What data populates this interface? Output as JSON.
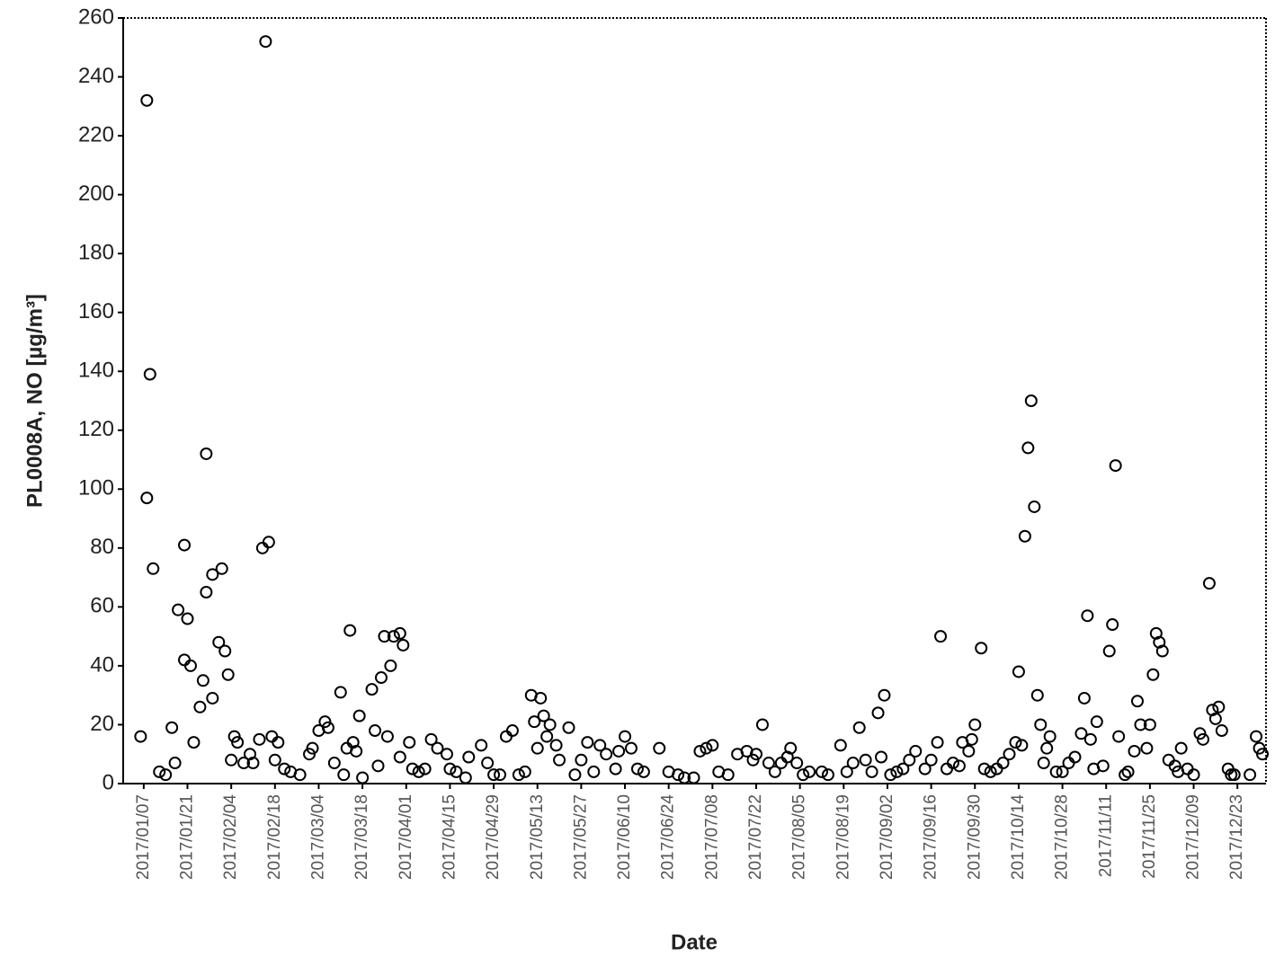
{
  "chart_data": {
    "type": "scatter",
    "xlabel": "Date",
    "ylabel": "PL0008A, NO [µg/m³]",
    "xlim": [
      "2017/01/01",
      "2017/12/31"
    ],
    "ylim": [
      0,
      260
    ],
    "yticks": [
      0,
      20,
      40,
      60,
      80,
      100,
      120,
      140,
      160,
      180,
      200,
      220,
      240,
      260
    ],
    "xticks": [
      "2017/01/07",
      "2017/01/21",
      "2017/02/04",
      "2017/02/18",
      "2017/03/04",
      "2017/03/18",
      "2017/04/01",
      "2017/04/15",
      "2017/04/29",
      "2017/05/13",
      "2017/05/27",
      "2017/06/10",
      "2017/06/24",
      "2017/07/08",
      "2017/07/22",
      "2017/08/05",
      "2017/08/19",
      "2017/09/02",
      "2017/09/16",
      "2017/09/30",
      "2017/10/14",
      "2017/10/28",
      "2017/11/11",
      "2017/11/25",
      "2017/12/09",
      "2017/12/23"
    ],
    "marker_color": "#000000",
    "x": [
      "2017/01/06",
      "2017/01/08",
      "2017/01/08",
      "2017/01/09",
      "2017/01/10",
      "2017/01/12",
      "2017/01/14",
      "2017/01/16",
      "2017/01/17",
      "2017/01/18",
      "2017/01/20",
      "2017/01/20",
      "2017/01/21",
      "2017/01/22",
      "2017/01/23",
      "2017/01/25",
      "2017/01/26",
      "2017/01/27",
      "2017/01/27",
      "2017/01/29",
      "2017/01/29",
      "2017/01/31",
      "2017/02/01",
      "2017/02/02",
      "2017/02/03",
      "2017/02/04",
      "2017/02/05",
      "2017/02/06",
      "2017/02/08",
      "2017/02/10",
      "2017/02/11",
      "2017/02/13",
      "2017/02/14",
      "2017/02/15",
      "2017/02/16",
      "2017/02/17",
      "2017/02/18",
      "2017/02/19",
      "2017/02/21",
      "2017/02/23",
      "2017/02/26",
      "2017/03/01",
      "2017/03/02",
      "2017/03/04",
      "2017/03/06",
      "2017/03/07",
      "2017/03/09",
      "2017/03/11",
      "2017/03/12",
      "2017/03/13",
      "2017/03/14",
      "2017/03/15",
      "2017/03/16",
      "2017/03/17",
      "2017/03/18",
      "2017/03/21",
      "2017/03/22",
      "2017/03/23",
      "2017/03/24",
      "2017/03/25",
      "2017/03/26",
      "2017/03/27",
      "2017/03/28",
      "2017/03/30",
      "2017/03/30",
      "2017/03/31",
      "2017/04/02",
      "2017/04/03",
      "2017/04/05",
      "2017/04/07",
      "2017/04/09",
      "2017/04/11",
      "2017/04/14",
      "2017/04/15",
      "2017/04/17",
      "2017/04/20",
      "2017/04/21",
      "2017/04/25",
      "2017/04/27",
      "2017/04/29",
      "2017/05/01",
      "2017/05/03",
      "2017/05/05",
      "2017/05/07",
      "2017/05/09",
      "2017/05/11",
      "2017/05/12",
      "2017/05/13",
      "2017/05/14",
      "2017/05/15",
      "2017/05/16",
      "2017/05/17",
      "2017/05/19",
      "2017/05/20",
      "2017/05/23",
      "2017/05/25",
      "2017/05/27",
      "2017/05/29",
      "2017/05/31",
      "2017/06/02",
      "2017/06/04",
      "2017/06/07",
      "2017/06/08",
      "2017/06/10",
      "2017/06/12",
      "2017/06/14",
      "2017/06/16",
      "2017/06/21",
      "2017/06/24",
      "2017/06/27",
      "2017/06/29",
      "2017/07/02",
      "2017/07/04",
      "2017/07/06",
      "2017/07/08",
      "2017/07/10",
      "2017/07/13",
      "2017/07/16",
      "2017/07/19",
      "2017/07/21",
      "2017/07/22",
      "2017/07/24",
      "2017/07/26",
      "2017/07/28",
      "2017/07/30",
      "2017/08/01",
      "2017/08/02",
      "2017/08/04",
      "2017/08/06",
      "2017/08/08",
      "2017/08/12",
      "2017/08/14",
      "2017/08/18",
      "2017/08/20",
      "2017/08/22",
      "2017/08/24",
      "2017/08/26",
      "2017/08/28",
      "2017/08/30",
      "2017/08/31",
      "2017/09/01",
      "2017/09/03",
      "2017/09/05",
      "2017/09/07",
      "2017/09/09",
      "2017/09/11",
      "2017/09/14",
      "2017/09/16",
      "2017/09/18",
      "2017/09/19",
      "2017/09/21",
      "2017/09/23",
      "2017/09/25",
      "2017/09/26",
      "2017/09/28",
      "2017/09/29",
      "2017/09/30",
      "2017/10/02",
      "2017/10/03",
      "2017/10/05",
      "2017/10/07",
      "2017/10/09",
      "2017/10/11",
      "2017/10/13",
      "2017/10/14",
      "2017/10/15",
      "2017/10/16",
      "2017/10/17",
      "2017/10/18",
      "2017/10/19",
      "2017/10/20",
      "2017/10/21",
      "2017/10/22",
      "2017/10/23",
      "2017/10/24",
      "2017/10/26",
      "2017/10/28",
      "2017/10/30",
      "2017/11/01",
      "2017/11/03",
      "2017/11/04",
      "2017/11/05",
      "2017/11/06",
      "2017/11/07",
      "2017/11/08",
      "2017/11/10",
      "2017/11/12",
      "2017/11/13",
      "2017/11/14",
      "2017/11/15",
      "2017/11/17",
      "2017/11/18",
      "2017/11/20",
      "2017/11/21",
      "2017/11/22",
      "2017/11/24",
      "2017/11/25",
      "2017/11/26",
      "2017/11/27",
      "2017/11/28",
      "2017/11/29",
      "2017/12/01",
      "2017/12/03",
      "2017/12/04",
      "2017/12/05",
      "2017/12/07",
      "2017/12/09",
      "2017/12/11",
      "2017/12/12",
      "2017/12/14",
      "2017/12/15",
      "2017/12/16",
      "2017/12/17",
      "2017/12/18",
      "2017/12/20",
      "2017/12/21",
      "2017/12/22",
      "2017/12/27",
      "2017/12/29",
      "2017/12/30",
      "2017/12/31"
    ],
    "values": [
      16,
      97,
      232,
      139,
      73,
      4,
      3,
      19,
      7,
      59,
      81,
      42,
      56,
      40,
      14,
      26,
      35,
      112,
      65,
      29,
      71,
      48,
      73,
      45,
      37,
      8,
      16,
      14,
      7,
      10,
      7,
      15,
      80,
      252,
      82,
      16,
      8,
      14,
      5,
      4,
      3,
      10,
      12,
      18,
      21,
      19,
      7,
      31,
      3,
      12,
      52,
      14,
      11,
      23,
      2,
      32,
      18,
      6,
      36,
      50,
      16,
      40,
      50,
      51,
      9,
      47,
      14,
      5,
      4,
      5,
      15,
      12,
      10,
      5,
      4,
      2,
      9,
      13,
      7,
      3,
      3,
      16,
      18,
      3,
      4,
      30,
      21,
      12,
      29,
      23,
      16,
      20,
      13,
      8,
      19,
      3,
      8,
      14,
      4,
      13,
      10,
      5,
      11,
      16,
      12,
      5,
      4,
      12,
      4,
      3,
      2,
      2,
      11,
      12,
      13,
      4,
      3,
      10,
      11,
      8,
      10,
      20,
      7,
      4,
      7,
      9,
      12,
      7,
      3,
      4,
      4,
      3,
      13,
      4,
      7,
      19,
      8,
      4,
      24,
      9,
      30,
      3,
      4,
      5,
      8,
      11,
      5,
      8,
      14,
      50,
      5,
      7,
      6,
      14,
      11,
      15,
      20,
      46,
      5,
      4,
      5,
      7,
      10,
      14,
      38,
      13,
      84,
      114,
      130,
      94,
      30,
      20,
      7,
      12,
      16,
      4,
      4,
      7,
      9,
      17,
      29,
      57,
      15,
      5,
      21,
      6,
      45,
      54,
      108,
      16,
      3,
      4,
      11,
      28,
      20,
      12,
      20,
      37,
      51,
      48,
      45,
      8,
      6,
      4,
      12,
      5,
      3,
      17,
      15,
      68,
      25,
      22,
      26,
      18,
      5,
      3,
      3,
      3,
      16,
      12,
      10
    ]
  }
}
